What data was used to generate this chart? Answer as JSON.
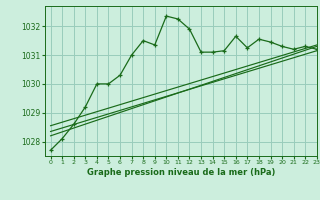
{
  "background_color": "#cceedd",
  "grid_color": "#99ccbb",
  "line_color": "#1a6b1a",
  "title": "Graphe pression niveau de la mer (hPa)",
  "xlim": [
    -0.5,
    23
  ],
  "ylim": [
    1027.5,
    1032.7
  ],
  "yticks": [
    1028,
    1029,
    1030,
    1031,
    1032
  ],
  "xticks": [
    0,
    1,
    2,
    3,
    4,
    5,
    6,
    7,
    8,
    9,
    10,
    11,
    12,
    13,
    14,
    15,
    16,
    17,
    18,
    19,
    20,
    21,
    22,
    23
  ],
  "main_line": {
    "x": [
      0,
      1,
      2,
      3,
      4,
      5,
      6,
      7,
      8,
      9,
      10,
      11,
      12,
      13,
      14,
      15,
      16,
      17,
      18,
      19,
      20,
      21,
      22,
      23
    ],
    "y": [
      1027.7,
      1028.1,
      1028.6,
      1029.2,
      1030.0,
      1030.0,
      1030.3,
      1031.0,
      1031.5,
      1031.35,
      1032.35,
      1032.25,
      1031.9,
      1031.1,
      1031.1,
      1031.15,
      1031.65,
      1031.25,
      1031.55,
      1031.45,
      1031.3,
      1031.2,
      1031.3,
      1031.2
    ]
  },
  "smooth_line1": {
    "x": [
      0,
      23
    ],
    "y": [
      1028.2,
      1031.3
    ]
  },
  "smooth_line2": {
    "x": [
      0,
      23
    ],
    "y": [
      1028.35,
      1031.15
    ]
  },
  "smooth_line3": {
    "x": [
      0,
      23
    ],
    "y": [
      1028.55,
      1031.35
    ]
  }
}
